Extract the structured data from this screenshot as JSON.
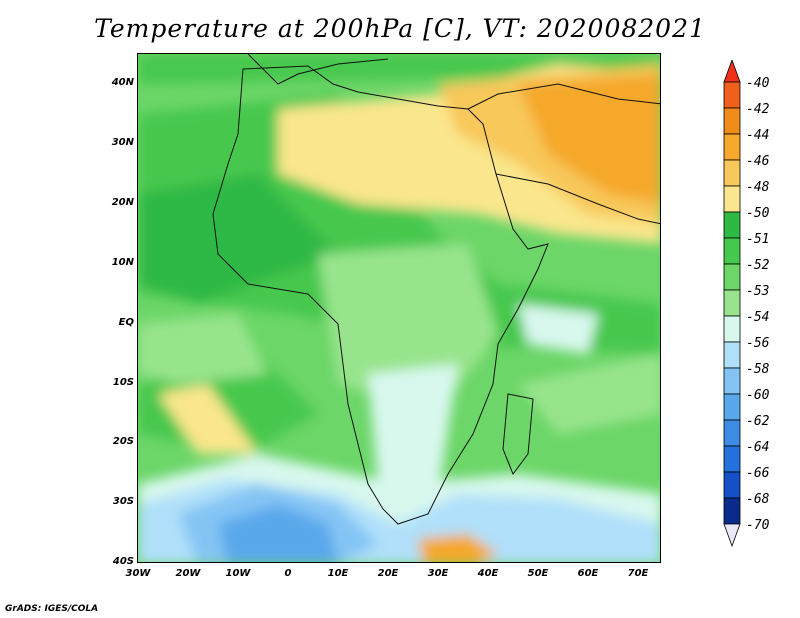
{
  "title": "Temperature at 200hPa [C], VT: 2020082021",
  "credit": "GrADS: IGES/COLA",
  "lat_labels": [
    "40N",
    "30N",
    "20N",
    "10N",
    "EQ",
    "10S",
    "20S",
    "30S",
    "40S"
  ],
  "lon_labels": [
    "30W",
    "20W",
    "10W",
    "0",
    "10E",
    "20E",
    "30E",
    "40E",
    "50E",
    "60E",
    "70E"
  ],
  "colorbar": {
    "labels": [
      "-40",
      "-42",
      "-44",
      "-46",
      "-48",
      "-50",
      "-51",
      "-52",
      "-53",
      "-54",
      "-56",
      "-58",
      "-60",
      "-62",
      "-64",
      "-66",
      "-68",
      "-70"
    ],
    "colors": [
      "#f03018",
      "#f0601a",
      "#f08c1a",
      "#f5a82c",
      "#f8c85a",
      "#fae68c",
      "#2eb844",
      "#46c84e",
      "#6cd668",
      "#98e48c",
      "#d8f8ee",
      "#b0e0fa",
      "#84c4f4",
      "#5aa8ec",
      "#3c8ce6",
      "#2470dc",
      "#1450c8",
      "#0a2a8c",
      "#141470"
    ]
  }
}
